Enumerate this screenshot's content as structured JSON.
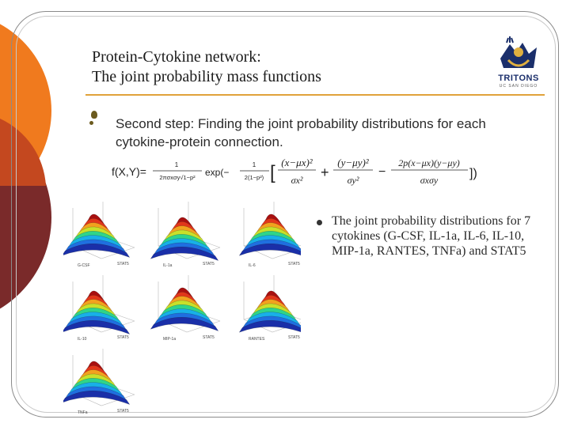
{
  "title": {
    "line1": "Protein-Cytokine network:",
    "line2": "The joint probability mass functions"
  },
  "logo": {
    "name": "TRITONS",
    "subtitle": "UC SAN DIEGO"
  },
  "step": {
    "text": "Second step: Finding the joint probability distributions for each cytokine-protein connection."
  },
  "formula": {
    "lhs": "f(X,Y)=",
    "exp": "exp(−",
    "num1": "1",
    "den1": "2πσxσy√1−p²",
    "num2": "1",
    "den2": "2(1−p²)",
    "term1_num": "(x−μx)²",
    "term1_den": "σx²",
    "plus": "+",
    "term2_num": "(y−μy)²",
    "term2_den": "σy²",
    "minus": "−",
    "term3_num": "2p(x−μx)(y−μy)",
    "term3_den": "σxσy",
    "close": "])"
  },
  "distributions": {
    "text": "The joint probability distributions for 7 cytokines (G-CSF, IL-1a, IL-6, IL-10, MIP-1a, RANTES, TNFa) and STAT5"
  },
  "plots": [
    {
      "xlabel": "G-CSF",
      "ylabel": "STAT5"
    },
    {
      "xlabel": "IL-1a",
      "ylabel": "STAT5"
    },
    {
      "xlabel": "IL-6",
      "ylabel": "STAT5"
    },
    {
      "xlabel": "IL-10",
      "ylabel": "STAT5"
    },
    {
      "xlabel": "MIP-1a",
      "ylabel": "STAT5"
    },
    {
      "xlabel": "RANTES",
      "ylabel": "STAT5"
    },
    {
      "xlabel": "TNFa",
      "ylabel": "STAT5"
    }
  ],
  "colors": {
    "accent_orange": "#f07a1e",
    "accent_maroon": "#7a2a2a",
    "rule": "#e0a23a",
    "bullet": "#6b5a1e"
  }
}
